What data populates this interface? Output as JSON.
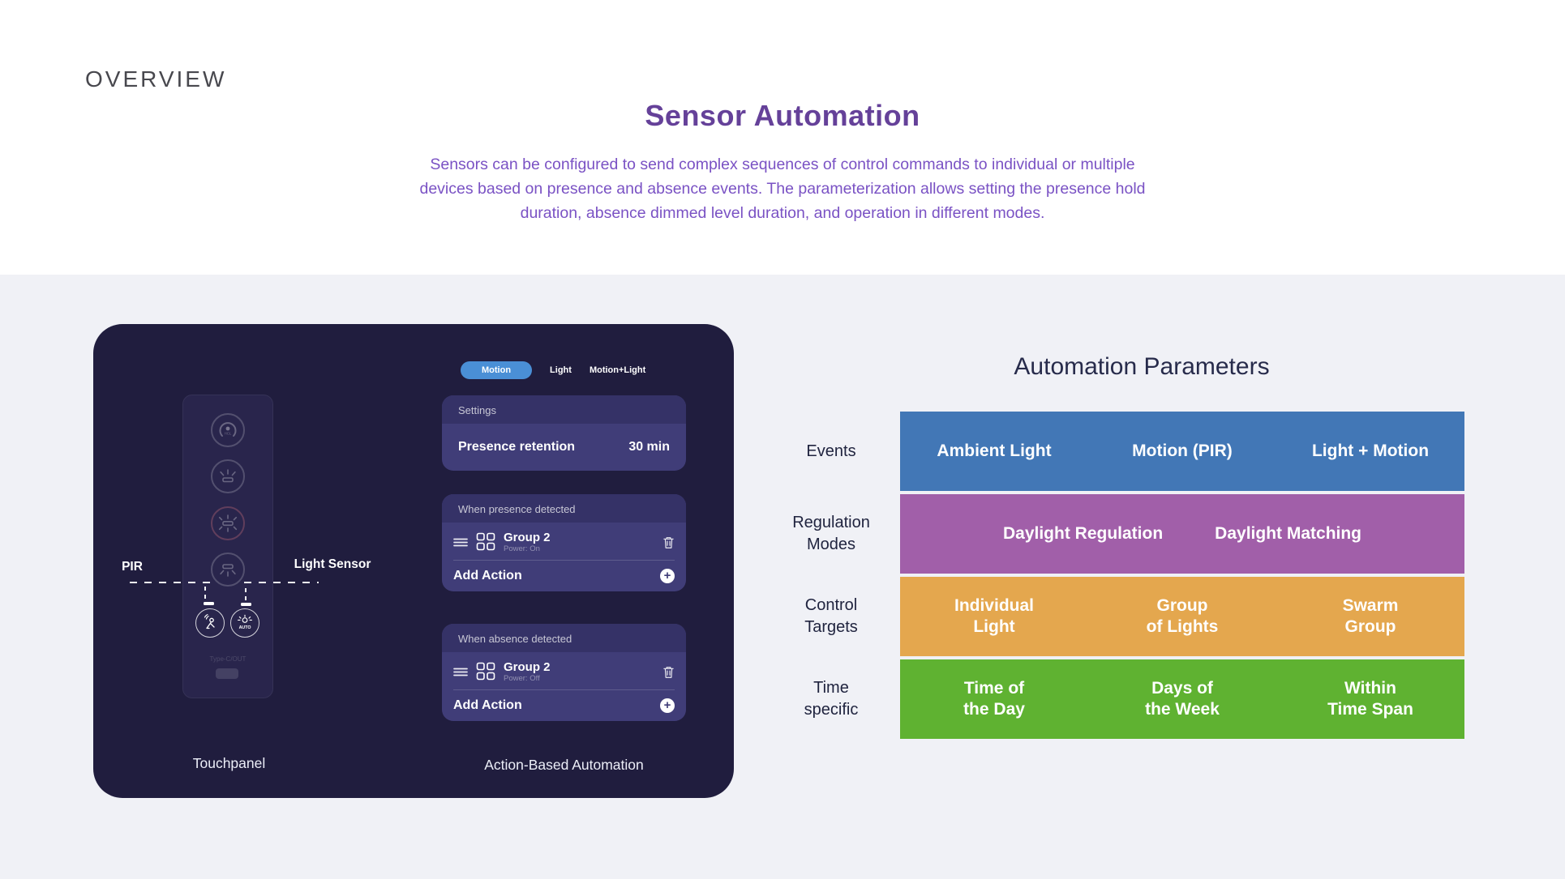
{
  "page": {
    "overview_label": "OVERVIEW",
    "title": "Sensor Automation",
    "description_lines": [
      "Sensors can be configured to send complex sequences of control commands to individual or multiple",
      "devices based on presence and absence events. The parameterization allows setting the presence hold",
      "duration, absence dimmed level duration, and operation in different modes."
    ]
  },
  "colors": {
    "section_bg": "#f0f1f6",
    "title_purple": "#654199",
    "description_purple": "#7a52c4",
    "panel_bg": "#201d3e",
    "card_bg": "#403d78",
    "card_header_bg": "#353267",
    "tab_active_blue": "#4a8fd6",
    "events_blue": "#4277b6",
    "regulation_purple": "#a15fa9",
    "targets_orange": "#e4a74e",
    "time_green": "#5fb231"
  },
  "device": {
    "touchpanel_caption": "Touchpanel",
    "pir_label": "PIR",
    "light_sensor_label": "Light Sensor",
    "port_label": "Type-C/OUT",
    "auto_button_label": "AUTO",
    "icons": [
      "hcl-dial-icon",
      "brightness-up-icon",
      "brightness-high-icon",
      "brightness-down-icon",
      "motion-sensor-icon",
      "auto-daylight-icon",
      "drag-handle-icon",
      "group-grid-icon",
      "trash-icon",
      "plus-icon"
    ]
  },
  "automation": {
    "caption": "Action-Based Automation",
    "tabs": [
      {
        "label": "Motion",
        "active": true
      },
      {
        "label": "Light",
        "active": false
      },
      {
        "label": "Motion+Light",
        "active": false
      }
    ],
    "settings_card": {
      "header": "Settings",
      "setting_label": "Presence retention",
      "setting_value": "30 min"
    },
    "presence_card": {
      "header": "When presence detected",
      "action_name": "Group 2",
      "action_status": "Power: On",
      "add_label": "Add Action"
    },
    "absence_card": {
      "header": "When absence detected",
      "action_name": "Group 2",
      "action_status": "Power: Off",
      "add_label": "Add Action"
    }
  },
  "parameters": {
    "title": "Automation Parameters",
    "rows": [
      {
        "label_lines": [
          "Events"
        ],
        "color": "#4277b6",
        "layout": "thirds",
        "items": [
          [
            "Ambient Light"
          ],
          [
            "Motion (PIR)"
          ],
          [
            "Light + Motion"
          ]
        ]
      },
      {
        "label_lines": [
          "Regulation",
          "Modes"
        ],
        "color": "#a15fa9",
        "layout": "pair",
        "items": [
          [
            "Daylight Regulation"
          ],
          [
            "Daylight Matching"
          ]
        ]
      },
      {
        "label_lines": [
          "Control",
          "Targets"
        ],
        "color": "#e4a74e",
        "layout": "thirds",
        "items": [
          [
            "Individual",
            "Light"
          ],
          [
            "Group",
            "of Lights"
          ],
          [
            "Swarm",
            "Group"
          ]
        ]
      },
      {
        "label_lines": [
          "Time",
          "specific"
        ],
        "color": "#5fb231",
        "layout": "thirds",
        "items": [
          [
            "Time of",
            "the Day"
          ],
          [
            "Days of",
            "the Week"
          ],
          [
            "Within",
            "Time Span"
          ]
        ]
      }
    ]
  }
}
